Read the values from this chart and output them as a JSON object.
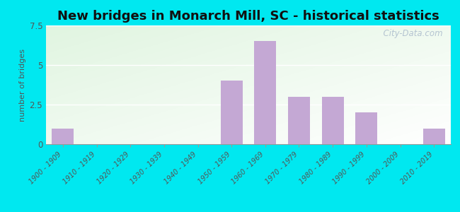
{
  "title": "New bridges in Monarch Mill, SC - historical statistics",
  "categories": [
    "1900 - 1909",
    "1910 - 1919",
    "1920 - 1929",
    "1930 - 1939",
    "1940 - 1949",
    "1950 - 1959",
    "1960 - 1969",
    "1970 - 1979",
    "1980 - 1989",
    "1990 - 1999",
    "2000 - 2009",
    "2010 - 2019"
  ],
  "values": [
    1,
    0,
    0,
    0,
    0,
    4,
    6.5,
    3,
    3,
    2,
    0,
    1
  ],
  "bar_color": "#c4a8d4",
  "ylabel": "number of bridges",
  "ylim": [
    0,
    7.5
  ],
  "yticks": [
    0,
    2.5,
    5,
    7.5
  ],
  "background_outer": "#00e8f0",
  "background_inner": "#e8f5e0",
  "title_fontsize": 13,
  "watermark": "  City-Data.com",
  "xlabel_fontsize": 7,
  "ylabel_fontsize": 8
}
